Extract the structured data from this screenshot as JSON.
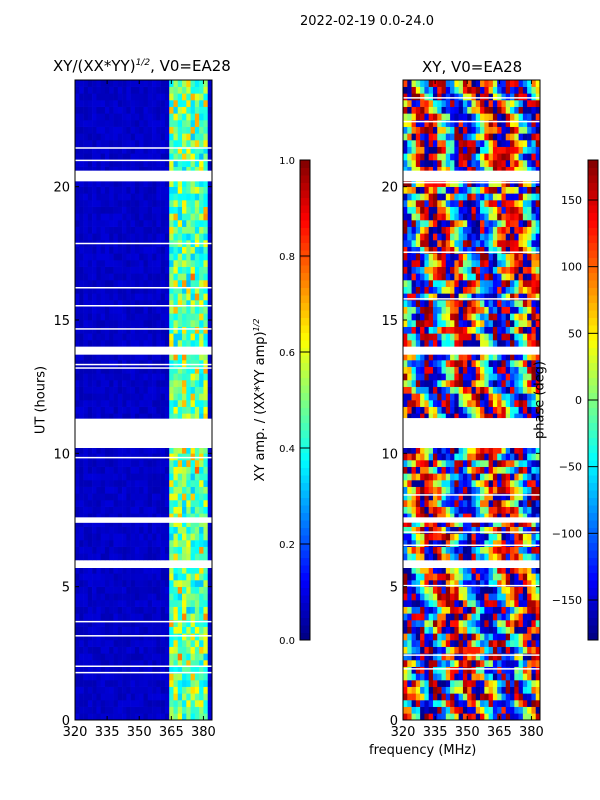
{
  "figure_title": "2022-02-19 0.0-24.0",
  "chart_data": [
    {
      "type": "heatmap",
      "title_base": "XY/(XX*YY)",
      "title_sup": "1/2",
      "title_suffix": ", V0=EA28",
      "xlabel": "frequency (MHz)",
      "ylabel": "UT (hours)",
      "xlim": [
        320,
        384
      ],
      "ylim": [
        0,
        24
      ],
      "xticks": [
        "320",
        "335",
        "350",
        "365",
        "380"
      ],
      "xtick_values": [
        320,
        335,
        350,
        365,
        380
      ],
      "yticks": [
        "0",
        "5",
        "10",
        "15",
        "20"
      ],
      "ytick_values": [
        0,
        5,
        10,
        15,
        20
      ],
      "colormap": "jet",
      "clim": [
        0,
        1
      ],
      "description_values": {
        "background_level": 0.05,
        "active_band_MHz": [
          363,
          382
        ],
        "active_level": [
          0.3,
          0.7
        ]
      },
      "flagged_hours": [
        [
          20.2,
          20.6
        ],
        [
          13.7,
          14.0
        ],
        [
          10.2,
          11.3
        ],
        [
          5.7,
          5.95
        ],
        [
          7.4,
          7.6
        ]
      ],
      "colorbar": {
        "label_base": "XY amp. / (XX*YY amp)",
        "label_sup": "1/2",
        "ticks": [
          "0.0",
          "0.2",
          "0.4",
          "0.6",
          "0.8",
          "1.0"
        ],
        "tick_values": [
          0,
          0.2,
          0.4,
          0.6,
          0.8,
          1.0
        ]
      }
    },
    {
      "type": "heatmap",
      "title": "XY, V0=EA28",
      "xlabel": "frequency (MHz)",
      "ylabel": "",
      "xlim": [
        320,
        384
      ],
      "ylim": [
        0,
        24
      ],
      "xticks": [
        "320",
        "335",
        "350",
        "365",
        "380"
      ],
      "xtick_values": [
        320,
        335,
        350,
        365,
        380
      ],
      "yticks": [
        "0",
        "5",
        "10",
        "15",
        "20"
      ],
      "ytick_values": [
        0,
        5,
        10,
        15,
        20
      ],
      "colormap": "jet",
      "clim": [
        -180,
        180
      ],
      "flagged_hours": [
        [
          20.2,
          20.6
        ],
        [
          13.7,
          14.0
        ],
        [
          10.2,
          11.3
        ],
        [
          5.7,
          5.95
        ],
        [
          7.4,
          7.6
        ]
      ],
      "colorbar": {
        "label": "phase (deg)",
        "ticks": [
          "−150",
          "−100",
          "−50",
          "0",
          "50",
          "100",
          "150"
        ],
        "tick_values": [
          -150,
          -100,
          -50,
          0,
          50,
          100,
          150
        ]
      }
    }
  ],
  "shared_xlabel": "frequency (MHz)"
}
